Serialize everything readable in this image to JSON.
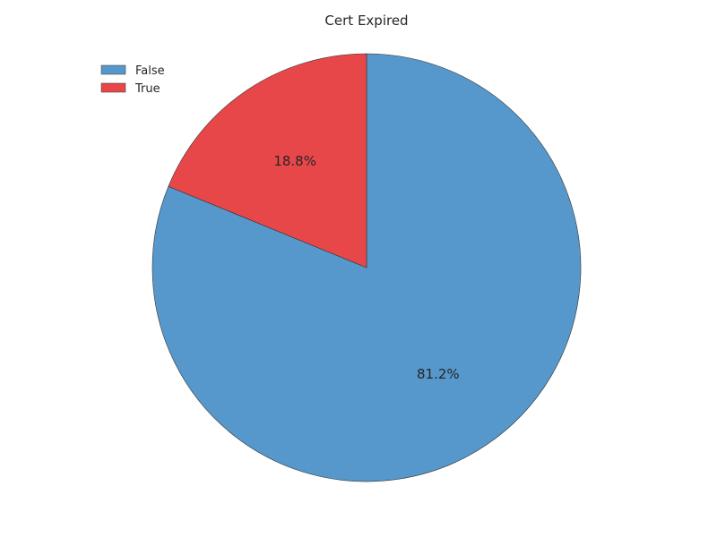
{
  "chart_data": {
    "type": "pie",
    "title": "Cert Expired",
    "categories": [
      "False",
      "True"
    ],
    "values": [
      81.2,
      18.8
    ],
    "labels": [
      "81.2%",
      "18.8%"
    ],
    "colors": [
      "#5698cb",
      "#e8474a"
    ],
    "start_angle_deg": 90,
    "direction": "clockwise",
    "legend_placement": "top-left"
  }
}
